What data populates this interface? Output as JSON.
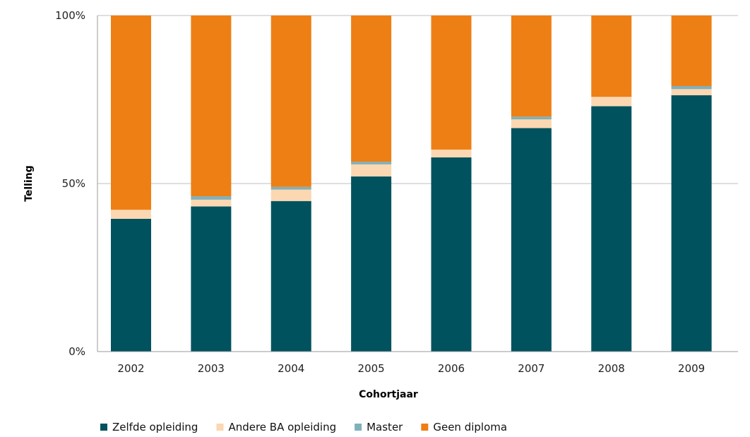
{
  "chart_data": {
    "type": "bar",
    "stacked": true,
    "percent": true,
    "categories": [
      "2002",
      "2003",
      "2004",
      "2005",
      "2006",
      "2007",
      "2008",
      "2009"
    ],
    "series": [
      {
        "name": "Zelfde opleiding",
        "color": "#00525e",
        "values": [
          39.5,
          43.2,
          44.8,
          52.1,
          57.8,
          66.5,
          73.0,
          76.3
        ]
      },
      {
        "name": "Andere BA opleiding",
        "color": "#fbd7b2",
        "values": [
          2.7,
          2.0,
          3.4,
          3.6,
          2.3,
          2.6,
          2.8,
          1.8
        ]
      },
      {
        "name": "Master",
        "color": "#7fb1bb",
        "values": [
          0.0,
          1.0,
          0.8,
          0.8,
          0.0,
          0.8,
          0.0,
          0.9
        ]
      },
      {
        "name": "Geen diploma",
        "color": "#ee7f14",
        "values": [
          57.8,
          53.8,
          51.0,
          43.5,
          39.9,
          30.1,
          24.2,
          21.0
        ]
      }
    ],
    "xlabel": "Cohortjaar",
    "ylabel": "Telling",
    "ylim": [
      0,
      100
    ],
    "yticks": [
      "0%",
      "50%",
      "100%"
    ],
    "grid": true,
    "legend_position": "bottom"
  }
}
